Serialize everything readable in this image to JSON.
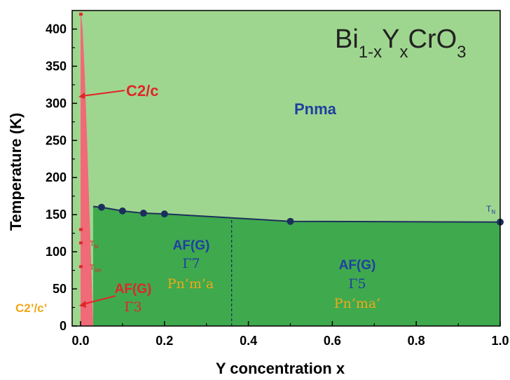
{
  "chart_data": {
    "type": "phase-diagram",
    "title": {
      "base": "Bi",
      "sub1": "1-x",
      "mid": "Y",
      "sub2": "x",
      "tail": "CrO",
      "sub3": "3"
    },
    "xlabel": "Y concentration x",
    "ylabel": "Temperature (K)",
    "xlim": [
      -0.02,
      1.0
    ],
    "ylim": [
      0,
      425
    ],
    "xticks": [
      "0.0",
      "0.2",
      "0.4",
      "0.6",
      "0.8",
      "1.0"
    ],
    "xtick_values": [
      0.0,
      0.2,
      0.4,
      0.6,
      0.8,
      1.0
    ],
    "yticks": [
      "0",
      "50",
      "100",
      "150",
      "200",
      "250",
      "300",
      "350",
      "400"
    ],
    "ytick_values": [
      0,
      50,
      100,
      150,
      200,
      250,
      300,
      350,
      400
    ],
    "neel_series": {
      "name": "TN",
      "x": [
        0.05,
        0.1,
        0.15,
        0.2,
        0.5,
        1.0
      ],
      "y": [
        160,
        155,
        152,
        151,
        141,
        140
      ],
      "line_x": [
        0.03,
        0.05,
        0.1,
        0.15,
        0.2,
        0.35,
        0.5,
        1.0
      ],
      "line_y": [
        161,
        160,
        155,
        152,
        151,
        146,
        141,
        140
      ]
    },
    "c2c_boundary": {
      "x": [
        0.0,
        0.005,
        0.01,
        0.015,
        0.02,
        0.025,
        0.03
      ],
      "y": [
        425,
        400,
        340,
        260,
        175,
        90,
        0
      ]
    },
    "phase_division_x": 0.36,
    "phase_division_ymax": 145,
    "early_points": [
      {
        "x": 0.0,
        "y": 420
      },
      {
        "x": 0.0,
        "y": 130
      },
      {
        "x": 0.0,
        "y": 112
      },
      {
        "x": 0.0,
        "y": 80
      }
    ],
    "labels": {
      "pnma": "Pnma",
      "c2c": "C2/c",
      "tn": "T",
      "tn_sub": "N",
      "tm": "T",
      "tm_sub": "M",
      "tsr": "T",
      "tsr_sub": "SR",
      "af_g": "AF(G)",
      "gamma7": "Γ7",
      "pnma_prime_1": "Pn’m’a",
      "gamma5": "Γ5",
      "pnma_prime_2": "Pn’ma’",
      "gamma3": "Γ3",
      "c2c_prime": "C2’/c’"
    },
    "colors": {
      "pnma_region": "#9fd68f",
      "af_region": "#3fa94e",
      "c2c_region": "#f06a78",
      "line": "#1c2f5c",
      "blue_text": "#1f3fa0",
      "red_text": "#e0262a",
      "orange_text": "#f0a818"
    }
  }
}
